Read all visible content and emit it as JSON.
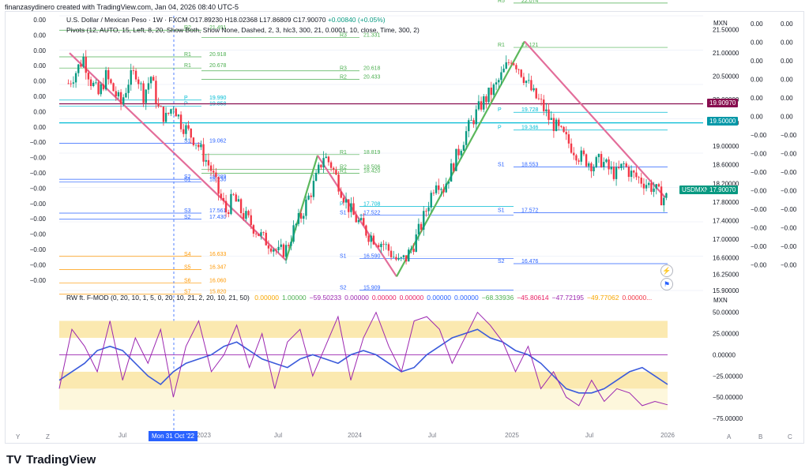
{
  "credit": "finanzasydinero created with TradingView.com, Jan 04, 2026 08:40 UTC-5",
  "header": {
    "symbol": "U.S. Dollar / Mexican Peso · 1W · FXCM",
    "open": "O17.89230",
    "high": "H18.02368",
    "low": "L17.86809",
    "close": "C17.90070",
    "change": "+0.00840 (+0.05%)"
  },
  "pivots_label": "Pivots (12, AUTO, 15, Left, 8, 20, Show Both, Show None, Dashed, 2, 3, hlc3, 300, 21, 0.0001, 10, close, Time, 300, 2)",
  "indicator": {
    "name": "RW ft. F-MOD (0, 20, 10, 1, 5, 0, 20, 10, 21, 2, 20, 10, 21, 50)",
    "values": [
      {
        "text": "0.00000",
        "color": "#f7a600"
      },
      {
        "text": "1.00000",
        "color": "#4caf50"
      },
      {
        "text": "−59.50233",
        "color": "#9c27b0"
      },
      {
        "text": "0.00000",
        "color": "#9c27b0"
      },
      {
        "text": "0.00000",
        "color": "#e91e63"
      },
      {
        "text": "0.00000",
        "color": "#e91e63"
      },
      {
        "text": "0.00000",
        "color": "#2962ff"
      },
      {
        "text": "0.00000",
        "color": "#2962ff"
      },
      {
        "text": "−68.33936",
        "color": "#4caf50"
      },
      {
        "text": "−45.80614",
        "color": "#e91e63"
      },
      {
        "text": "−47.72195",
        "color": "#9c27b0"
      },
      {
        "text": "−49.77062",
        "color": "#f7a600"
      },
      {
        "text": "0.00000...",
        "color": "#f23645"
      }
    ]
  },
  "currency": "MXN",
  "currency2": "MXN",
  "badges": {
    "pair": "USDMXN",
    "last": "17.90070",
    "level1": "19.90970",
    "level2": "19.50000"
  },
  "crosshair_date": "Mon 31 Oct '22",
  "logo_text": "TradingView",
  "logo_mark": "TV",
  "corner": {
    "left_y": "Y",
    "left_z": "Z",
    "right_a": "A",
    "right_b": "B",
    "right_c": "C"
  },
  "colors": {
    "up": "#089981",
    "down": "#f23645",
    "trend": "#e36d9a",
    "trend_up": "#5cb85c"
  },
  "chart_data": [
    {
      "type": "candlestick",
      "title": "U.S. Dollar / Mexican Peso · 1W · FXCM",
      "ylabel": "MXN",
      "ylim": [
        15.9,
        21.8
      ],
      "x_ticks": [
        "Jul",
        "2023",
        "Jul",
        "2024",
        "Jul",
        "2025",
        "Jul",
        "2026"
      ],
      "y_ticks": [
        "21.50000",
        "21.00000",
        "20.50000",
        "20.00000",
        "19.50000",
        "19.00000",
        "18.60000",
        "18.20000",
        "17.80000",
        "17.40000",
        "17.00000",
        "16.60000",
        "16.25000",
        "15.90000"
      ],
      "close_path": [
        20.35,
        20.6,
        20.9,
        20.4,
        20.1,
        20.5,
        20.2,
        19.9,
        20.4,
        20.6,
        20.1,
        20.5,
        19.8,
        19.6,
        19.9,
        19.5,
        19.3,
        19.1,
        18.8,
        18.5,
        18.0,
        17.6,
        17.9,
        17.6,
        17.4,
        17.2,
        17.0,
        16.9,
        16.7,
        16.8,
        17.2,
        17.5,
        17.9,
        18.3,
        18.8,
        18.6,
        18.2,
        17.8,
        17.5,
        17.3,
        17.1,
        17.0,
        16.9,
        16.7,
        16.5,
        16.6,
        16.9,
        17.3,
        17.8,
        18.3,
        18.1,
        18.5,
        18.9,
        19.3,
        19.6,
        19.9,
        20.1,
        20.3,
        20.6,
        20.9,
        20.7,
        20.4,
        20.1,
        19.9,
        19.6,
        19.4,
        19.2,
        19.0,
        18.8,
        18.7,
        18.6,
        18.7,
        18.5,
        18.4,
        18.6,
        18.4,
        18.3,
        18.2,
        18.1,
        17.9
      ],
      "pivot_labels": [
        {
          "label": "R2",
          "value": "21.491"
        },
        {
          "label": "R1",
          "value": "20.918"
        },
        {
          "label": "R1",
          "value": "20.678"
        },
        {
          "label": "P",
          "value": "19.990"
        },
        {
          "label": "P",
          "value": "19.858"
        },
        {
          "label": "S1",
          "value": "19.062"
        },
        {
          "label": "S2",
          "value": "18.289"
        },
        {
          "label": "S1",
          "value": "18.230"
        },
        {
          "label": "S3",
          "value": "17.561"
        },
        {
          "label": "S2",
          "value": "17.430"
        },
        {
          "label": "S4",
          "value": "16.633"
        },
        {
          "label": "S5",
          "value": "16.347"
        },
        {
          "label": "S6",
          "value": "16.060"
        },
        {
          "label": "S7",
          "value": "15.820"
        },
        {
          "label": "R3",
          "value": "21.331"
        },
        {
          "label": "R3",
          "value": "20.618"
        },
        {
          "label": "R2",
          "value": "20.433"
        },
        {
          "label": "R2",
          "value": "18.506"
        },
        {
          "label": "R1",
          "value": "18.819"
        },
        {
          "label": "R1",
          "value": "18.420"
        },
        {
          "label": "P",
          "value": "17.708"
        },
        {
          "label": "S1",
          "value": "17.522"
        },
        {
          "label": "S1",
          "value": "16.590"
        },
        {
          "label": "S2",
          "value": "15.909"
        },
        {
          "label": "R1",
          "value": "21.121"
        },
        {
          "label": "P",
          "value": "19.728"
        },
        {
          "label": "P",
          "value": "19.346"
        },
        {
          "label": "S1",
          "value": "18.553"
        },
        {
          "label": "S1",
          "value": "17.572"
        },
        {
          "label": "S2",
          "value": "16.476"
        },
        {
          "label": "R5",
          "value": "22.074"
        }
      ],
      "left_axis_labels": [
        "0.00",
        "0.00",
        "0.00",
        "0.00",
        "0.00",
        "0.00",
        "0.00",
        "0.00",
        "−0.00",
        "−0.00",
        "−0.00",
        "−0.00",
        "−0.00",
        "−0.00",
        "−0.00",
        "−0.00",
        "−0.00",
        "−0.00"
      ],
      "right_axis_labels": [
        "0.00",
        "0.00",
        "0.00",
        "0.00",
        "0.00",
        "0.00",
        "−0.00",
        "−0.00",
        "−0.00",
        "−0.00",
        "−0.00",
        "−0.00",
        "−0.00",
        "−0.00"
      ]
    },
    {
      "type": "line",
      "title": "RW ft. F-MOD",
      "ylim": [
        -75,
        60
      ],
      "y_ticks": [
        "50.00000",
        "25.00000",
        "0.00000",
        "−25.00000",
        "−50.00000",
        "−75.00000"
      ],
      "series": [
        {
          "name": "",
          "color": "#3b5bdb",
          "values": [
            -30,
            -20,
            -10,
            5,
            10,
            5,
            -10,
            -25,
            -35,
            -20,
            -10,
            -5,
            0,
            10,
            15,
            5,
            -5,
            -10,
            -15,
            -5,
            0,
            -5,
            -10,
            0,
            5,
            0,
            -10,
            -20,
            -15,
            0,
            10,
            20,
            25,
            30,
            20,
            15,
            5,
            0,
            -10,
            -25,
            -40,
            -45,
            -45,
            -40,
            -30,
            -20,
            -15,
            -25,
            -35
          ]
        },
        {
          "name": "",
          "color": "#9c27b0",
          "values": [
            -40,
            30,
            10,
            -20,
            40,
            -30,
            20,
            -10,
            30,
            -50,
            10,
            40,
            -20,
            0,
            35,
            -15,
            25,
            -40,
            15,
            30,
            -25,
            10,
            45,
            -30,
            20,
            50,
            10,
            -20,
            40,
            45,
            30,
            -10,
            20,
            50,
            35,
            15,
            -20,
            10,
            -40,
            -20,
            -50,
            -60,
            -30,
            -55,
            -40,
            -45,
            -60,
            -55,
            -59
          ]
        }
      ]
    }
  ]
}
